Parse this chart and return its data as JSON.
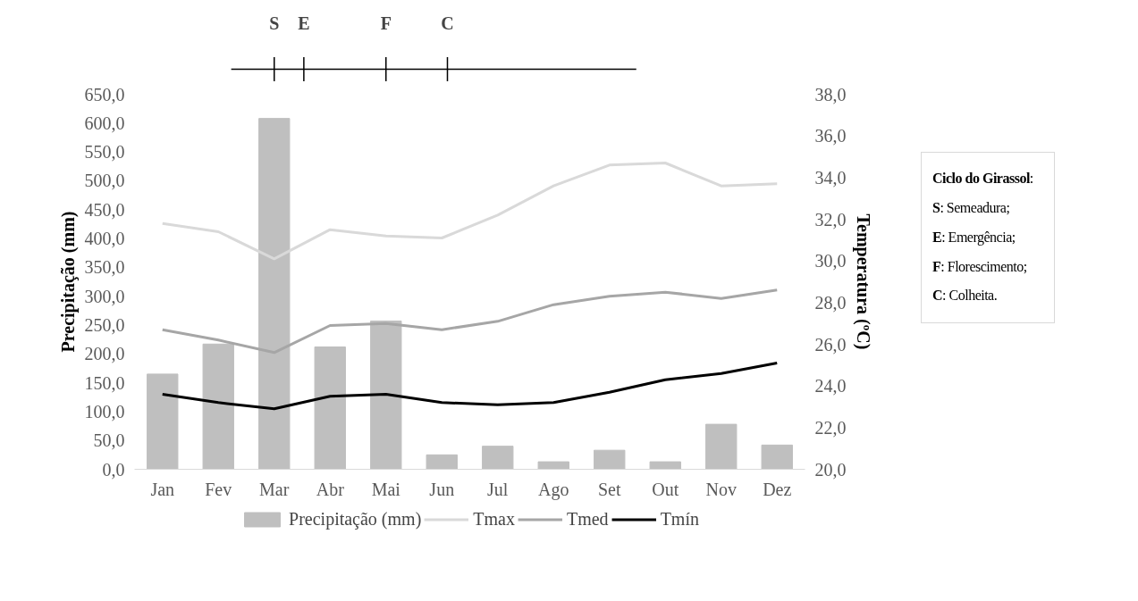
{
  "chart_data": {
    "type": "bar",
    "categories": [
      "Jan",
      "Fev",
      "Mar",
      "Abr",
      "Mai",
      "Jun",
      "Jul",
      "Ago",
      "Set",
      "Out",
      "Nov",
      "Dez"
    ],
    "ylabel": "Precipitação (mm)",
    "y2label": "Temperatura (ºC)",
    "ylim": [
      0,
      650
    ],
    "yticks": [
      {
        "value": 0,
        "label": "0,0"
      },
      {
        "value": 50,
        "label": "50,0"
      },
      {
        "value": 100,
        "label": "100,0"
      },
      {
        "value": 150,
        "label": "150,0"
      },
      {
        "value": 200,
        "label": "200,0"
      },
      {
        "value": 250,
        "label": "250,0"
      },
      {
        "value": 300,
        "label": "300,0"
      },
      {
        "value": 350,
        "label": "350,0"
      },
      {
        "value": 400,
        "label": "400,0"
      },
      {
        "value": 450,
        "label": "450,0"
      },
      {
        "value": 500,
        "label": "500,0"
      },
      {
        "value": 550,
        "label": "550,0"
      },
      {
        "value": 600,
        "label": "600,0"
      },
      {
        "value": 650,
        "label": "650,0"
      }
    ],
    "y2lim": [
      20,
      38
    ],
    "y2ticks": [
      {
        "value": 20,
        "label": "20,0"
      },
      {
        "value": 22,
        "label": "22,0"
      },
      {
        "value": 24,
        "label": "24,0"
      },
      {
        "value": 26,
        "label": "26,0"
      },
      {
        "value": 28,
        "label": "28,0"
      },
      {
        "value": 30,
        "label": "30,0"
      },
      {
        "value": 32,
        "label": "32,0"
      },
      {
        "value": 34,
        "label": "34,0"
      },
      {
        "value": 36,
        "label": "36,0"
      },
      {
        "value": 38,
        "label": "38,0"
      }
    ],
    "series": [
      {
        "name": "Precipitação (mm)",
        "type": "bar",
        "color": "#bfbfbf",
        "values": [
          165,
          217,
          608,
          212,
          257,
          25,
          40,
          13,
          33,
          13,
          78,
          42
        ]
      },
      {
        "name": "Tmax",
        "type": "line",
        "axis": "y2",
        "color": "#d9d9d9",
        "values": [
          31.8,
          31.4,
          30.1,
          31.5,
          31.2,
          31.1,
          32.2,
          33.6,
          34.6,
          34.7,
          33.6,
          33.7
        ]
      },
      {
        "name": "Tmed",
        "type": "line",
        "axis": "y2",
        "color": "#a6a6a6",
        "values": [
          26.7,
          26.2,
          25.6,
          26.9,
          27.0,
          26.7,
          27.1,
          27.9,
          28.3,
          28.5,
          28.2,
          28.6
        ]
      },
      {
        "name": "Tmín",
        "type": "line",
        "axis": "y2",
        "color": "#000000",
        "values": [
          23.6,
          23.2,
          22.9,
          23.5,
          23.6,
          23.2,
          23.1,
          23.2,
          23.7,
          24.3,
          24.6,
          25.1
        ]
      }
    ],
    "legend": "bottom",
    "grid": false,
    "annotations": [
      "S",
      "E",
      "F",
      "C",
      "Ciclo do Girassol:",
      "S: Semeadura;",
      "E: Emergência;",
      "F: Florescimento;",
      "C: Colheita."
    ]
  }
}
